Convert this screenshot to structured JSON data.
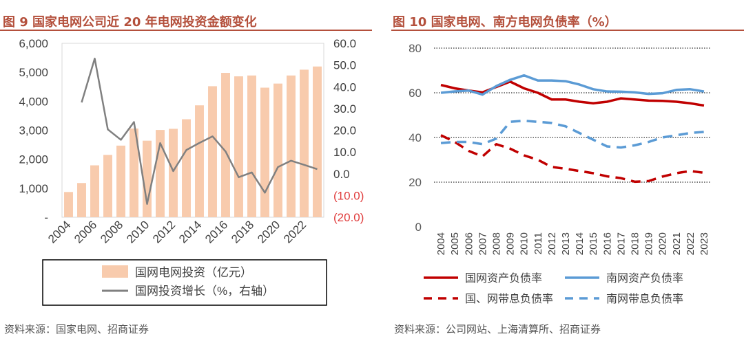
{
  "colors": {
    "title": "#b4503c",
    "bar_fill": "#f8cbad",
    "growth_line": "#808080",
    "negative_tick": "#e03c3c",
    "sgcc_line": "#c00000",
    "csg_line": "#5b9bd5"
  },
  "left": {
    "title": "图 9 国家电网公司近 20 年电网投资金额变化",
    "source": "资料来源：国家电网、招商证券",
    "legend": {
      "bar": "国网电网投资（亿元）",
      "line": "国网投资增长（%，右轴）"
    },
    "chart_data": {
      "type": "bar",
      "categories": [
        "2004",
        "2005",
        "2006",
        "2007",
        "2008",
        "2009",
        "2010",
        "2011",
        "2012",
        "2013",
        "2014",
        "2015",
        "2016",
        "2017",
        "2018",
        "2019",
        "2020",
        "2021",
        "2022",
        "2023"
      ],
      "x_tick_labels": [
        "2004",
        "2006",
        "2008",
        "2010",
        "2012",
        "2014",
        "2016",
        "2018",
        "2020",
        "2022"
      ],
      "series": [
        {
          "name": "国网电网投资（亿元）",
          "axis": "left",
          "kind": "bar",
          "values": [
            870,
            1180,
            1790,
            2150,
            2470,
            3060,
            2640,
            3010,
            3050,
            3380,
            3860,
            4520,
            4980,
            4860,
            4890,
            4470,
            4610,
            4890,
            5090,
            5200
          ]
        },
        {
          "name": "国网投资增长（%，右轴）",
          "axis": "right",
          "kind": "line",
          "values": [
            null,
            32.8,
            53,
            20.4,
            15.6,
            23.8,
            -13.9,
            14.1,
            1.2,
            10.9,
            14.2,
            17.2,
            10.2,
            -1.6,
            0.6,
            -8.7,
            3.1,
            6.0,
            4.1,
            2.1
          ]
        }
      ],
      "ylim_left": [
        0,
        6000
      ],
      "yticks_left": [
        "6,000",
        "5,000",
        "4,000",
        "3,000",
        "2,000",
        "1,000",
        "-"
      ],
      "ylim_right": [
        -20,
        60
      ],
      "yticks_right": [
        "60.0",
        "50.0",
        "40.0",
        "30.0",
        "20.0",
        "10.0",
        "0.0",
        "(10.0)",
        "(20.0)"
      ]
    }
  },
  "right": {
    "title": "图 10  国家电网、南方电网负债率（%）",
    "source": "资料来源：公司网站、上海清算所、招商证券",
    "chart_data": {
      "type": "line",
      "categories": [
        "2004",
        "2005",
        "2006",
        "2007",
        "2008",
        "2009",
        "2010",
        "2011",
        "2012",
        "2013",
        "2014",
        "2015",
        "2016",
        "2017",
        "2018",
        "2019",
        "2020",
        "2021",
        "2022",
        "2023"
      ],
      "ylim": [
        0,
        80
      ],
      "yticks": [
        "80",
        "60",
        "40",
        "20",
        "0"
      ],
      "grid": true,
      "series": [
        {
          "name": "国网资产负债率",
          "style": "solid",
          "color": "#c00000",
          "values": [
            63.5,
            62,
            61,
            60.2,
            62.6,
            65,
            62,
            60,
            57,
            57,
            56,
            55.3,
            56,
            57.5,
            57,
            56.5,
            56.4,
            56,
            55.3,
            54.3
          ]
        },
        {
          "name": "南网资产负债率",
          "style": "solid",
          "color": "#5b9bd5",
          "values": [
            60,
            60.6,
            61,
            59.2,
            63,
            65.8,
            67.8,
            65.5,
            65.5,
            65.2,
            63.7,
            61.6,
            60.6,
            60.5,
            60.2,
            59.5,
            59.8,
            61.3,
            61.6,
            60.6
          ]
        },
        {
          "name": "国、网带息负债率",
          "style": "dashed",
          "color": "#c00000",
          "values": [
            41,
            38,
            34,
            31.5,
            37,
            35,
            32,
            30,
            26.8,
            26,
            25,
            24,
            22.6,
            21.8,
            20.2,
            20.5,
            22.5,
            24,
            25,
            24.2
          ]
        },
        {
          "name": "南网带息负债率",
          "style": "dashed",
          "color": "#5b9bd5",
          "values": [
            37.5,
            38,
            38,
            37,
            39.5,
            47,
            47.5,
            47,
            46.5,
            45,
            42,
            39,
            36,
            35.5,
            36.5,
            38,
            40,
            41,
            42,
            42.5
          ]
        }
      ]
    }
  }
}
